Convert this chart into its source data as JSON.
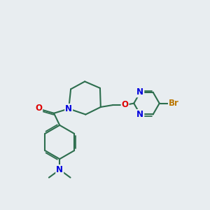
{
  "bg_color": "#e8edf0",
  "bond_color": "#2d6e4e",
  "bond_width": 1.5,
  "atom_colors": {
    "C": "#2d6e4e",
    "N": "#0000dd",
    "O": "#dd0000",
    "Br": "#bb7700"
  },
  "font_size": 8.5,
  "figsize": [
    3.0,
    3.0
  ],
  "dpi": 100
}
